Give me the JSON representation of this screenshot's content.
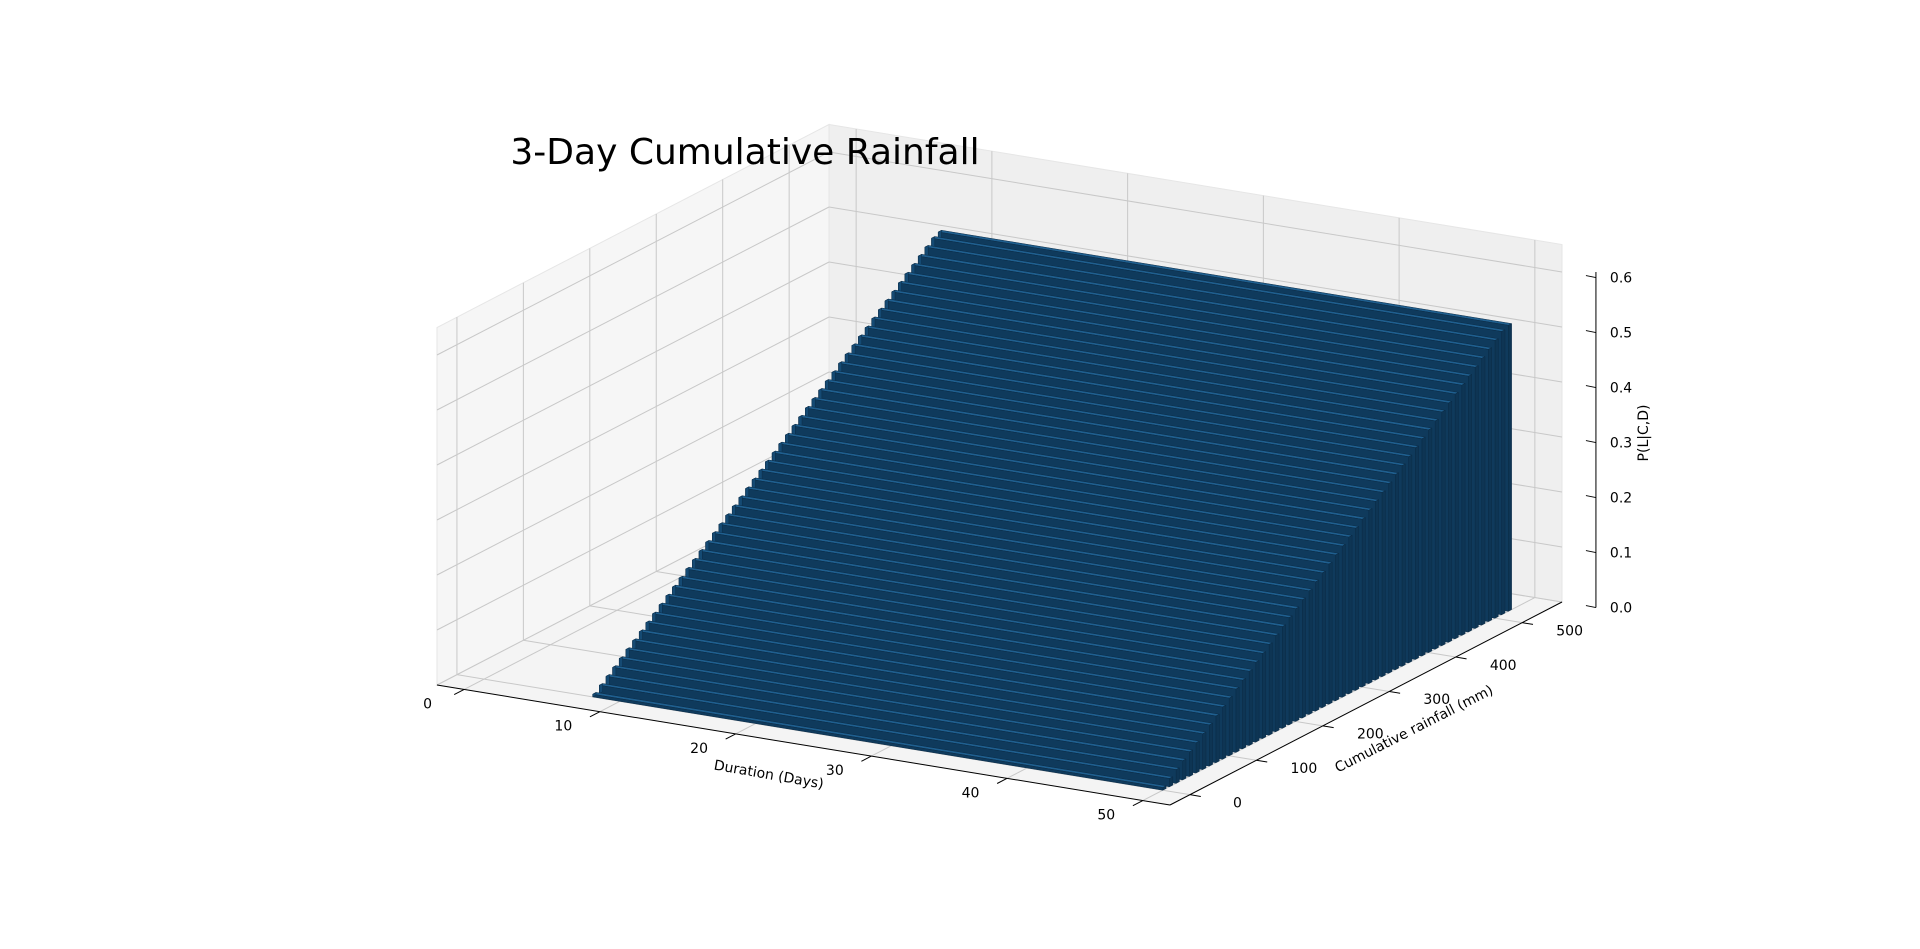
{
  "chart_data": {
    "type": "bar3d",
    "title": "3-Day Cumulative Rainfall",
    "xlabel": "Duration (Days)",
    "ylabel": "Cumulative rainfall (mm)",
    "zlabel": "P(L|C,D)",
    "x_ticks": [
      "0",
      "10",
      "20",
      "30",
      "40",
      "50"
    ],
    "y_ticks": [
      "0",
      "100",
      "200",
      "300",
      "400",
      "500"
    ],
    "z_ticks": [
      "0.0",
      "0.1",
      "0.2",
      "0.3",
      "0.4",
      "0.5",
      "0.6"
    ],
    "xlim": [
      -2,
      52
    ],
    "ylim": [
      -30,
      560
    ],
    "zlim": [
      0,
      0.6
    ],
    "grid": true,
    "bar_color": "#0f3a5c",
    "bar_top_color": "#1f5f8f",
    "pane_color": "#f2f2f2",
    "series": [
      {
        "description": "one wall of bars per cumulative-rainfall level; height rises with rainfall, constant across duration",
        "rainfall_mm": [
          0,
          10,
          20,
          30,
          40,
          50,
          60,
          70,
          80,
          90,
          100,
          110,
          120,
          130,
          140,
          150,
          160,
          170,
          180,
          190,
          200,
          210,
          220,
          230,
          240,
          250,
          260,
          270,
          280,
          290,
          300,
          310,
          320,
          330,
          340,
          350,
          360,
          370,
          380,
          390,
          400,
          410,
          420,
          430,
          440,
          450,
          460,
          470,
          480,
          490,
          500,
          510,
          520
        ],
        "probability": [
          0.005,
          0.015,
          0.025,
          0.035,
          0.045,
          0.055,
          0.065,
          0.075,
          0.085,
          0.095,
          0.105,
          0.115,
          0.125,
          0.135,
          0.145,
          0.155,
          0.165,
          0.175,
          0.185,
          0.195,
          0.205,
          0.215,
          0.225,
          0.235,
          0.245,
          0.255,
          0.265,
          0.275,
          0.285,
          0.295,
          0.305,
          0.315,
          0.325,
          0.335,
          0.345,
          0.355,
          0.365,
          0.375,
          0.385,
          0.395,
          0.405,
          0.415,
          0.425,
          0.435,
          0.445,
          0.455,
          0.465,
          0.475,
          0.485,
          0.495,
          0.505,
          0.515,
          0.52
        ],
        "duration_range_days": [
          8,
          50
        ]
      }
    ]
  }
}
